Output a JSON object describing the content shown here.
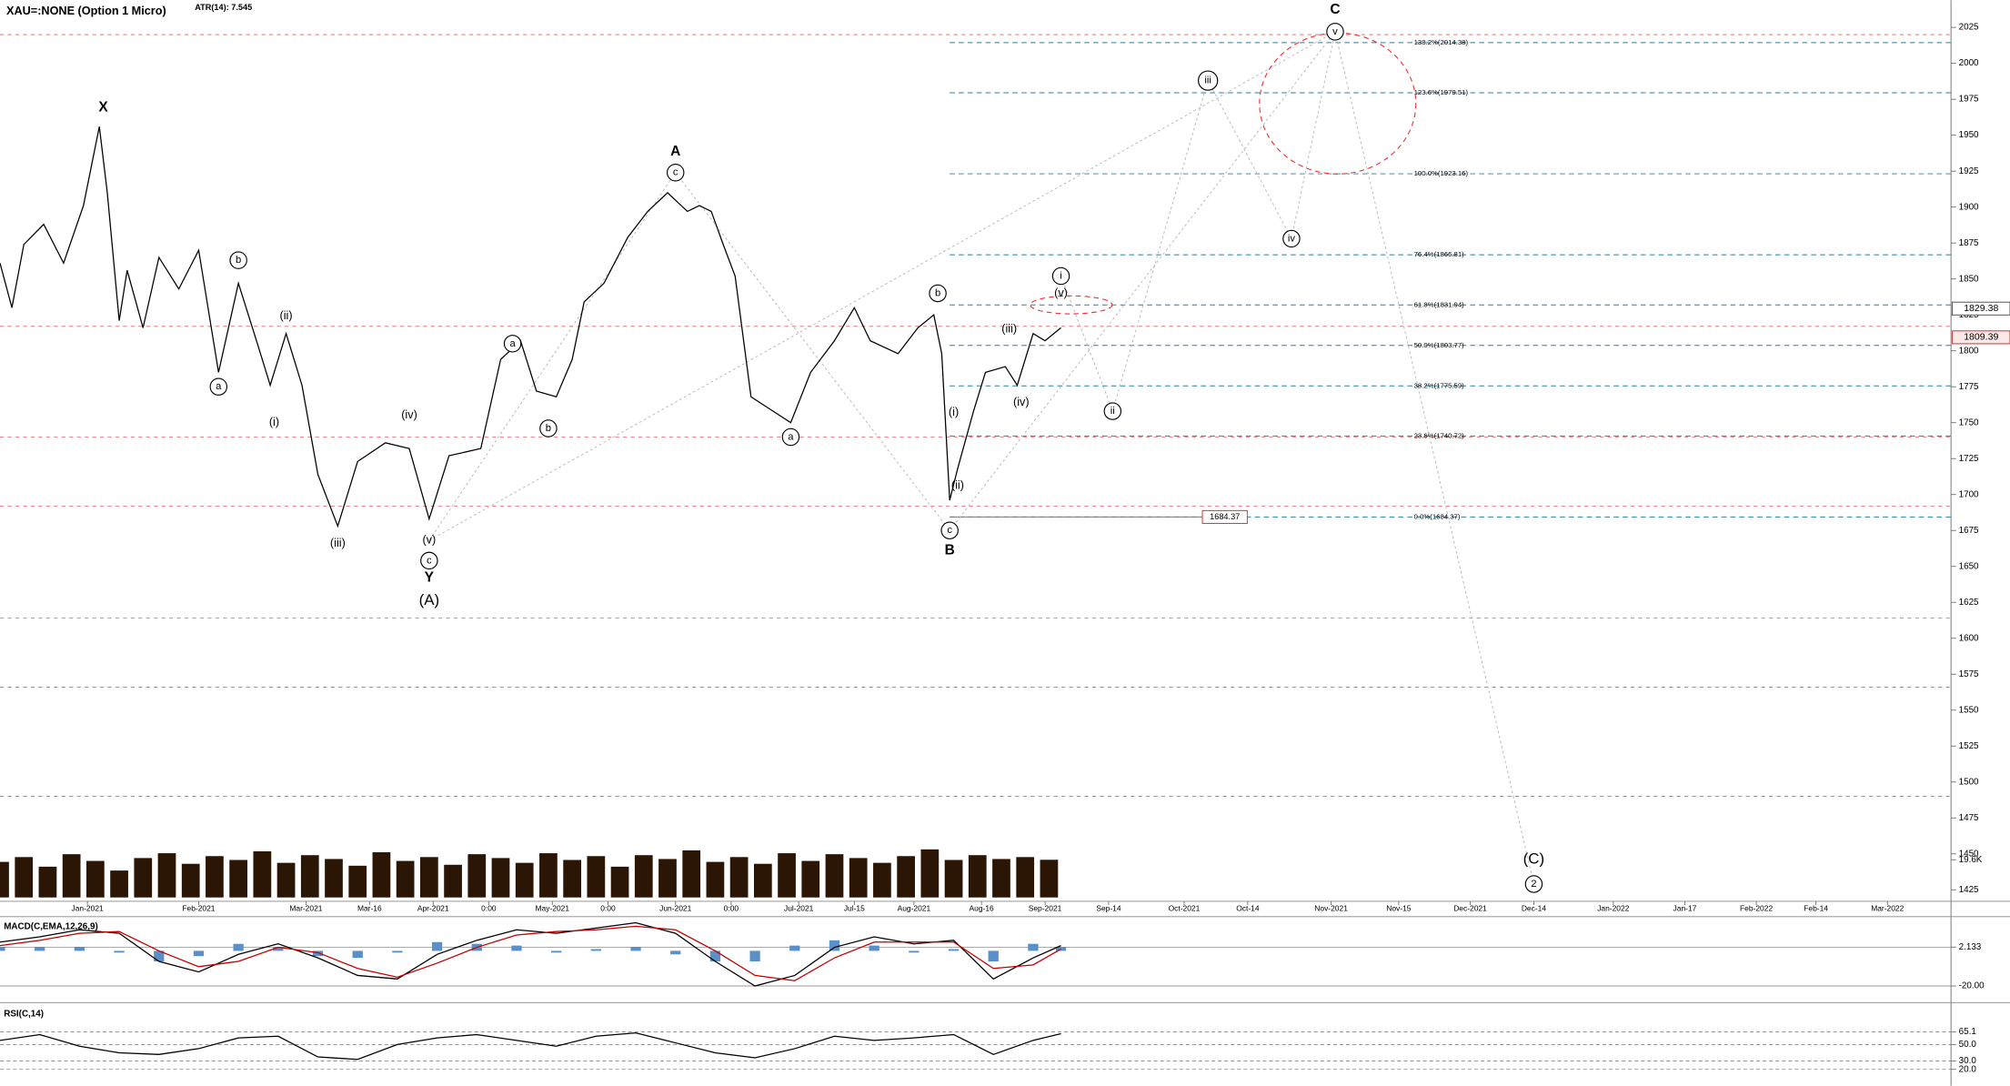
{
  "chart_data": [
    {
      "type": "line",
      "title": "XAU=:NONE (Option 1 Micro)",
      "subtitle": "ATR(14): 7.545",
      "x": [
        0,
        3,
        6,
        11,
        16,
        21,
        25,
        27,
        30,
        32,
        36,
        40,
        45,
        50,
        55,
        60,
        65,
        68,
        72,
        76,
        80,
        85,
        90,
        97,
        103,
        108,
        113,
        121,
        126,
        131,
        135,
        140,
        144,
        147,
        152,
        158,
        163,
        168,
        173,
        176,
        179,
        182,
        185,
        189,
        194,
        199,
        204,
        210,
        215,
        219,
        226,
        231,
        235,
        237,
        239,
        241,
        245,
        248,
        253,
        256,
        260,
        263,
        267
      ],
      "series": [
        {
          "color": "#000000",
          "values": [
            1861,
            1830,
            1874,
            1888,
            1861,
            1901,
            1956,
            1910,
            1821,
            1856,
            1816,
            1865,
            1843,
            1870,
            1785,
            1847,
            1803,
            1776,
            1812,
            1776,
            1714,
            1678,
            1723,
            1736,
            1732,
            1683,
            1727,
            1732,
            1794,
            1807,
            1772,
            1768,
            1794,
            1834,
            1847,
            1879,
            1897,
            1910,
            1897,
            1901,
            1897,
            1874,
            1852,
            1768,
            1759,
            1750,
            1785,
            1807,
            1830,
            1807,
            1798,
            1816,
            1825,
            1798,
            1696,
            1718,
            1758,
            1785,
            1789,
            1776,
            1812,
            1807,
            1816
          ]
        }
      ],
      "xlim": [
        0,
        491
      ],
      "ylim": [
        1417,
        2044
      ],
      "yticks": [
        1425,
        1450,
        1475,
        1500,
        1525,
        1550,
        1575,
        1600,
        1625,
        1650,
        1675,
        1700,
        1725,
        1750,
        1775,
        1800,
        1825,
        1850,
        1875,
        1900,
        1925,
        1950,
        1975,
        2000,
        2025
      ],
      "xticks": [
        {
          "value": 22,
          "label": "Jan-2021"
        },
        {
          "value": 50,
          "label": "Feb-2021"
        },
        {
          "value": 77,
          "label": "Mar-2021"
        },
        {
          "value": 93,
          "label": "Mar-16"
        },
        {
          "value": 109,
          "label": "Apr-2021"
        },
        {
          "value": 123,
          "label": "0:00"
        },
        {
          "value": 139,
          "label": "May-2021"
        },
        {
          "value": 153,
          "label": "0:00"
        },
        {
          "value": 170,
          "label": "Jun-2021"
        },
        {
          "value": 184,
          "label": "0:00"
        },
        {
          "value": 201,
          "label": "Jul-2021"
        },
        {
          "value": 215,
          "label": "Jul-15"
        },
        {
          "value": 230,
          "label": "Aug-2021"
        },
        {
          "value": 247,
          "label": "Aug-16"
        },
        {
          "value": 263,
          "label": "Sep-2021"
        },
        {
          "value": 279,
          "label": "Sep-14"
        },
        {
          "value": 298,
          "label": "Oct-2021"
        },
        {
          "value": 314,
          "label": "Oct-14"
        },
        {
          "value": 335,
          "label": "Nov-2021"
        },
        {
          "value": 352,
          "label": "Nov-15"
        },
        {
          "value": 370,
          "label": "Dec-2021"
        },
        {
          "value": 386,
          "label": "Dec-14"
        },
        {
          "value": 406,
          "label": "Jan-2022"
        },
        {
          "value": 424,
          "label": "Jan-17"
        },
        {
          "value": 442,
          "label": "Feb-2022"
        },
        {
          "value": 457,
          "label": "Feb-14"
        },
        {
          "value": 475,
          "label": "Mar-2022"
        }
      ],
      "annotations": [
        {
          "text": "X",
          "x": 26,
          "y": 1969,
          "style": "bold"
        },
        {
          "text": "A",
          "x": 170,
          "y": 1938.5,
          "style": "bold"
        },
        {
          "text": "c",
          "x": 170,
          "y": 1924,
          "style": "circled"
        },
        {
          "text": "B",
          "x": 239,
          "y": 1661,
          "style": "bold"
        },
        {
          "text": "c",
          "x": 239,
          "y": 1675,
          "style": "circled"
        },
        {
          "text": "C",
          "x": 336,
          "y": 2037,
          "style": "bold"
        },
        {
          "text": "v",
          "x": 336,
          "y": 2022,
          "style": "circled"
        },
        {
          "text": "Y",
          "x": 108,
          "y": 1642,
          "style": "bold"
        },
        {
          "text": "c",
          "x": 108,
          "y": 1654,
          "style": "circled"
        },
        {
          "text": "(v)",
          "x": 108,
          "y": 1668,
          "style": "plain"
        },
        {
          "text": "(A)",
          "x": 108,
          "y": 1626,
          "style": "big"
        },
        {
          "text": "b",
          "x": 60,
          "y": 1863,
          "style": "circled"
        },
        {
          "text": "(ii)",
          "x": 72,
          "y": 1824,
          "style": "plain"
        },
        {
          "text": "a",
          "x": 55,
          "y": 1775,
          "style": "circled"
        },
        {
          "text": "(i)",
          "x": 69,
          "y": 1750,
          "style": "plain"
        },
        {
          "text": "(iii)",
          "x": 85,
          "y": 1666,
          "style": "plain"
        },
        {
          "text": "(iv)",
          "x": 103,
          "y": 1755,
          "style": "plain"
        },
        {
          "text": "a",
          "x": 129,
          "y": 1805,
          "style": "circled"
        },
        {
          "text": "b",
          "x": 138,
          "y": 1746,
          "style": "circled"
        },
        {
          "text": "a",
          "x": 199,
          "y": 1740,
          "style": "circled"
        },
        {
          "text": "b",
          "x": 236,
          "y": 1840,
          "style": "circled"
        },
        {
          "text": "(i)",
          "x": 240,
          "y": 1757,
          "style": "plain"
        },
        {
          "text": "(ii)",
          "x": 241,
          "y": 1706,
          "style": "plain"
        },
        {
          "text": "(iii)",
          "x": 254,
          "y": 1815,
          "style": "plain"
        },
        {
          "text": "(iv)",
          "x": 257,
          "y": 1764,
          "style": "plain"
        },
        {
          "text": "(v)",
          "x": 267,
          "y": 1840,
          "style": "plain"
        },
        {
          "text": "i",
          "x": 267,
          "y": 1852,
          "style": "circled"
        },
        {
          "text": "ii",
          "x": 280,
          "y": 1758,
          "style": "circled"
        },
        {
          "text": "iii",
          "x": 304,
          "y": 1988,
          "style": "circled"
        },
        {
          "text": "iv",
          "x": 325,
          "y": 1878,
          "style": "circled"
        },
        {
          "text": "(C)",
          "x": 386,
          "y": 1446,
          "style": "big"
        },
        {
          "text": "2",
          "x": 386,
          "y": 1429,
          "style": "circled"
        }
      ],
      "fib_color": "#2a7f9e",
      "fib_levels": [
        {
          "label": "138.2%(2014.38)",
          "value": 2014.38
        },
        {
          "label": "123.6%(1979.51)",
          "value": 1979.51
        },
        {
          "label": "100.0%(1923.16)",
          "value": 1923.16
        },
        {
          "label": "76.4%(1866.81)",
          "value": 1866.81
        },
        {
          "label": "61.8%(1831.94)",
          "value": 1831.94
        },
        {
          "label": "50.0%(1803.77)",
          "value": 1803.77
        },
        {
          "label": "38.2%(1775.59)",
          "value": 1775.59
        },
        {
          "label": "23.6%(1740.72)",
          "value": 1740.72
        },
        {
          "label": "0.0%(1684.37)",
          "value": 1684.37
        }
      ],
      "level_color": "#e06060",
      "level_lines": [
        2020,
        1817,
        1740,
        1692,
        1614,
        1566,
        1490
      ],
      "price_markers": [
        1829.38,
        1809.39
      ],
      "low_marker": 1684.37
    },
    {
      "type": "bar",
      "x": [
        0,
        6,
        12,
        18,
        24,
        30,
        36,
        42,
        48,
        54,
        60,
        66,
        72,
        78,
        84,
        90,
        96,
        102,
        108,
        114,
        120,
        126,
        132,
        138,
        144,
        150,
        156,
        162,
        168,
        174,
        180,
        186,
        192,
        198,
        204,
        210,
        216,
        222,
        228,
        234,
        240,
        246,
        252,
        258,
        264
      ],
      "values": [
        18500,
        21000,
        16000,
        22500,
        19000,
        14000,
        20500,
        23000,
        17500,
        21500,
        19500,
        24000,
        18000,
        22000,
        20000,
        16500,
        23500,
        19000,
        21000,
        17000,
        22500,
        20500,
        18000,
        23000,
        19500,
        21500,
        16000,
        22000,
        20000,
        24500,
        18500,
        21000,
        17500,
        23000,
        19000,
        22500,
        20500,
        18000,
        21500,
        25000,
        19500,
        22000,
        20000,
        21000,
        19600
      ],
      "color": "#2b1606",
      "ylim": [
        0,
        30000
      ],
      "yticks": [
        {
          "value": 19600,
          "label": "19.6K"
        }
      ]
    },
    {
      "type": "line",
      "title": "MACD(C,EMA,12,26,9)",
      "x": [
        0,
        10,
        20,
        30,
        40,
        50,
        60,
        70,
        80,
        90,
        100,
        110,
        120,
        130,
        140,
        150,
        160,
        170,
        180,
        190,
        200,
        210,
        220,
        230,
        240,
        250,
        260,
        267
      ],
      "series": [
        {
          "color": "#000000",
          "values": [
            5,
            8,
            12,
            10,
            -6,
            -12,
            -2,
            4,
            -4,
            -14,
            -16,
            -2,
            6,
            12,
            10,
            13,
            16,
            10,
            -6,
            -20,
            -14,
            2,
            8,
            4,
            6,
            -16,
            -4,
            3
          ]
        },
        {
          "color": "#c00000",
          "values": [
            3,
            6,
            10,
            11,
            0,
            -9,
            -6,
            2,
            -1,
            -10,
            -15,
            -7,
            2,
            9,
            11,
            12,
            14,
            12,
            0,
            -14,
            -17,
            -4,
            5,
            5,
            5,
            -10,
            -8,
            1
          ]
        }
      ],
      "histogram": [
        2,
        2,
        2,
        -1,
        -6,
        -3,
        4,
        2,
        -3,
        -4,
        -1,
        5,
        4,
        3,
        -1,
        1,
        2,
        -2,
        -6,
        -6,
        3,
        6,
        3,
        -1,
        1,
        -6,
        4,
        2
      ],
      "histogram_color": "#5b8fc7",
      "ylim": [
        -28,
        18
      ],
      "yticks": [
        2.133,
        {
          "value": -20,
          "label": "-20.00"
        }
      ]
    },
    {
      "type": "line",
      "title": "RSI(C,14)",
      "x": [
        0,
        10,
        20,
        30,
        40,
        50,
        60,
        70,
        80,
        90,
        100,
        110,
        120,
        130,
        140,
        150,
        160,
        170,
        180,
        190,
        200,
        210,
        220,
        230,
        240,
        250,
        260,
        267
      ],
      "series": [
        {
          "color": "#000000",
          "values": [
            55,
            62,
            48,
            40,
            38,
            45,
            58,
            60,
            35,
            32,
            50,
            58,
            62,
            55,
            48,
            60,
            64,
            52,
            40,
            34,
            45,
            60,
            55,
            58,
            62,
            38,
            55,
            63
          ]
        }
      ],
      "ylim": [
        0,
        96
      ],
      "yticks": [
        65.1,
        {
          "value": 50,
          "label": "50.0"
        },
        {
          "value": 30,
          "label": "30.0"
        },
        {
          "value": 20,
          "label": "20.0"
        }
      ]
    }
  ]
}
